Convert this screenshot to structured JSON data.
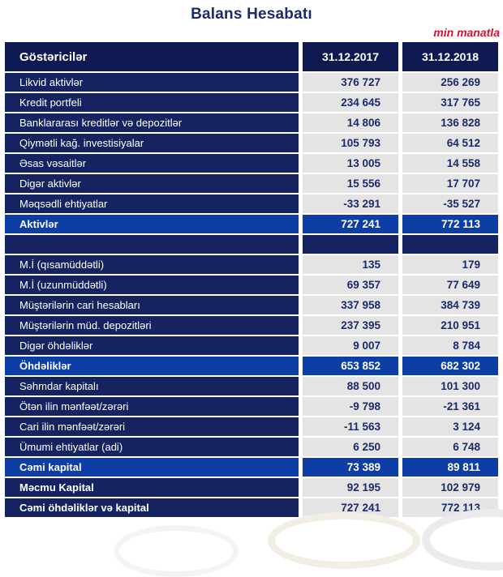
{
  "page": {
    "title": "Balans Hesabatı",
    "unit_note": "min manatla"
  },
  "colors": {
    "header_navy": "#101a52",
    "row_navy": "#152460",
    "total_blue": "#0d3ea6",
    "value_gray": "#e4e4e4",
    "value_text_navy": "#1b2a6b",
    "accent_red": "#d51036"
  },
  "table": {
    "header": {
      "label": "Göstəricilər",
      "col_2017": "31.12.2017",
      "col_2018": "31.12.2018"
    },
    "rows": [
      {
        "type": "data",
        "label": "Likvid aktivlər",
        "v2017": "376 727",
        "v2018": "256 269"
      },
      {
        "type": "data",
        "label": "Kredit portfeli",
        "v2017": "234 645",
        "v2018": "317 765"
      },
      {
        "type": "data",
        "label": "Banklararası kreditlər və depozitlər",
        "v2017": "14 806",
        "v2018": "136 828"
      },
      {
        "type": "data",
        "label": "Qiymətli kağ. investisiyalar",
        "v2017": "105 793",
        "v2018": "64 512"
      },
      {
        "type": "data",
        "label": "Əsas vəsaitlər",
        "v2017": "13 005",
        "v2018": "14 558"
      },
      {
        "type": "data",
        "label": "Digər aktivlər",
        "v2017": "15 556",
        "v2018": "17 707"
      },
      {
        "type": "data",
        "label": "Məqsədli ehtiyatlar",
        "v2017": "-33 291",
        "v2018": "-35 527"
      },
      {
        "type": "total",
        "label": "Aktivlər",
        "v2017": "727 241",
        "v2018": "772 113"
      },
      {
        "type": "spacer",
        "label": "",
        "v2017": "",
        "v2018": ""
      },
      {
        "type": "data",
        "label": "M.İ (qısamüddətli)",
        "v2017": "135",
        "v2018": "179"
      },
      {
        "type": "data",
        "label": "M.İ (uzunmüddətli)",
        "v2017": "69 357",
        "v2018": "77 649"
      },
      {
        "type": "data",
        "label": "Müştərilərin cari hesabları",
        "v2017": "337 958",
        "v2018": "384 739"
      },
      {
        "type": "data",
        "label": "Müştərilərin müd. depozitləri",
        "v2017": "237 395",
        "v2018": "210 951"
      },
      {
        "type": "data",
        "label": "Digər öhdəliklər",
        "v2017": "9 007",
        "v2018": "8 784"
      },
      {
        "type": "total",
        "label": "Öhdəliklər",
        "v2017": "653 852",
        "v2018": "682 302"
      },
      {
        "type": "data",
        "label": "Səhmdar kapitalı",
        "v2017": "88 500",
        "v2018": "101 300"
      },
      {
        "type": "data",
        "label": "Ötən ilin mənfəət/zərəri",
        "v2017": "-9 798",
        "v2018": "-21 361"
      },
      {
        "type": "data",
        "label": "Cari ilin mənfəət/zərəri",
        "v2017": "-11 563",
        "v2018": "3 124"
      },
      {
        "type": "data",
        "label": "Ümumi ehtiyatlar (adi)",
        "v2017": "6 250",
        "v2018": "6 748"
      },
      {
        "type": "total",
        "label": "Cəmi kapital",
        "v2017": "73 389",
        "v2018": "89 811"
      },
      {
        "type": "grand",
        "label": "Məcmu Kapital",
        "v2017": "92 195",
        "v2018": "102 979"
      },
      {
        "type": "grand",
        "label": "Cəmi öhdəliklər və kapital",
        "v2017": "727 241",
        "v2018": "772 113"
      }
    ]
  }
}
